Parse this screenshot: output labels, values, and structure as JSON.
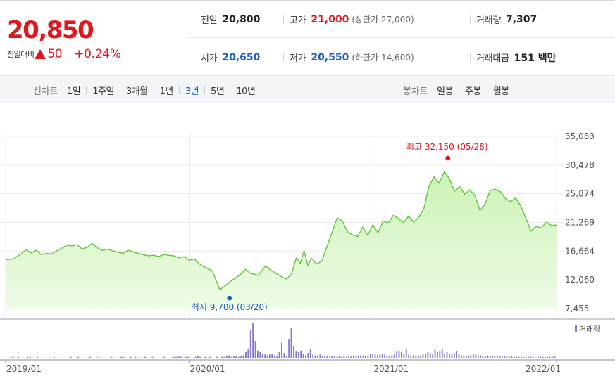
{
  "quote": {
    "price": "20,850",
    "change_label": "전일대비",
    "change_value": "50",
    "change_percent": "+0.24%",
    "up_color": "#e0181e",
    "down_color": "#1b5fc1"
  },
  "stats": {
    "prev_close": {
      "label": "전일",
      "value": "20,800"
    },
    "high": {
      "label": "고가",
      "value": "21,000",
      "limit_label": "(상한가 27,000)"
    },
    "volume": {
      "label": "거래량",
      "value": "7,307"
    },
    "open": {
      "label": "시가",
      "value": "20,650"
    },
    "low": {
      "label": "저가",
      "value": "20,550",
      "limit_label": "(하한가 14,600)"
    },
    "trade_value": {
      "label": "거래대금",
      "value": "151 백만"
    }
  },
  "period_bar": {
    "line_chart_label": "선차트",
    "line_tabs": [
      "1일",
      "1주일",
      "3개월",
      "1년",
      "3년",
      "5년",
      "10년"
    ],
    "active_line_tab": "3년",
    "candle_chart_label": "봉차트",
    "candle_tabs": [
      "일봉",
      "주봉",
      "월봉"
    ]
  },
  "chart_data": {
    "type": "area",
    "x_tick_labels": [
      "2019/01",
      "2020/01",
      "2021/01",
      "2022/01"
    ],
    "y_tick_labels": [
      "35,083",
      "30,478",
      "25,874",
      "21,269",
      "16,664",
      "12,060",
      "7,455"
    ],
    "ylim": [
      7455,
      35083
    ],
    "x_range": [
      "2019/01",
      "2022/01"
    ],
    "grid": true,
    "line_color": "#5fc53a",
    "fill_color": "#c8f2b0",
    "high_marker": {
      "label": "최고 32,150 (05/28)",
      "date": "2021/05",
      "value": 32150,
      "color": "#e0181e"
    },
    "low_marker": {
      "label": "최저 9,700 (03/20)",
      "date": "2020/03",
      "value": 9700,
      "color": "#1b5fc1"
    },
    "price_series": [
      [
        "2019/01",
        15300
      ],
      [
        "2019/01",
        15400
      ],
      [
        "2019/02",
        16200
      ],
      [
        "2019/02",
        16900
      ],
      [
        "2019/02",
        16400
      ],
      [
        "2019/03",
        16800
      ],
      [
        "2019/03",
        16100
      ],
      [
        "2019/03",
        16300
      ],
      [
        "2019/04",
        16200
      ],
      [
        "2019/04",
        16900
      ],
      [
        "2019/05",
        17600
      ],
      [
        "2019/05",
        17500
      ],
      [
        "2019/05",
        17700
      ],
      [
        "2019/06",
        17000
      ],
      [
        "2019/06",
        17300
      ],
      [
        "2019/06",
        17900
      ],
      [
        "2019/07",
        17200
      ],
      [
        "2019/07",
        16800
      ],
      [
        "2019/07",
        17000
      ],
      [
        "2019/08",
        16700
      ],
      [
        "2019/08",
        16500
      ],
      [
        "2019/08",
        16300
      ],
      [
        "2019/09",
        16800
      ],
      [
        "2019/09",
        16400
      ],
      [
        "2019/10",
        16100
      ],
      [
        "2019/10",
        15900
      ],
      [
        "2019/10",
        16000
      ],
      [
        "2019/11",
        15800
      ],
      [
        "2019/11",
        16100
      ],
      [
        "2019/11",
        16000
      ],
      [
        "2019/12",
        15900
      ],
      [
        "2019/12",
        15600
      ],
      [
        "2019/12",
        15800
      ],
      [
        "2020/01",
        15200
      ],
      [
        "2020/01",
        15400
      ],
      [
        "2020/01",
        14600
      ],
      [
        "2020/02",
        14100
      ],
      [
        "2020/02",
        13500
      ],
      [
        "2020/03",
        10500
      ],
      [
        "2020/03",
        11100
      ],
      [
        "2020/03",
        11800
      ],
      [
        "2020/04",
        12300
      ],
      [
        "2020/04",
        12900
      ],
      [
        "2020/04",
        13700
      ],
      [
        "2020/05",
        13100
      ],
      [
        "2020/05",
        12800
      ],
      [
        "2020/06",
        14300
      ],
      [
        "2020/06",
        13600
      ],
      [
        "2020/06",
        13100
      ],
      [
        "2020/07",
        12600
      ],
      [
        "2020/07",
        12200
      ],
      [
        "2020/07",
        12900
      ],
      [
        "2020/08",
        15600
      ],
      [
        "2020/08",
        14700
      ],
      [
        "2020/08",
        16700
      ],
      [
        "2020/08",
        14400
      ],
      [
        "2020/09",
        15500
      ],
      [
        "2020/09",
        14600
      ],
      [
        "2020/09",
        15100
      ],
      [
        "2020/10",
        17400
      ],
      [
        "2020/10",
        19700
      ],
      [
        "2020/10",
        22000
      ],
      [
        "2020/11",
        21500
      ],
      [
        "2020/11",
        19800
      ],
      [
        "2020/11",
        19300
      ],
      [
        "2020/12",
        19000
      ],
      [
        "2020/12",
        20500
      ],
      [
        "2020/12",
        19200
      ],
      [
        "2021/01",
        20900
      ],
      [
        "2021/01",
        19600
      ],
      [
        "2021/01",
        21500
      ],
      [
        "2021/02",
        21200
      ],
      [
        "2021/02",
        22400
      ],
      [
        "2021/02",
        21900
      ],
      [
        "2021/03",
        21200
      ],
      [
        "2021/03",
        22300
      ],
      [
        "2021/03",
        21300
      ],
      [
        "2021/04",
        22100
      ],
      [
        "2021/04",
        23500
      ],
      [
        "2021/04",
        27100
      ],
      [
        "2021/05",
        28600
      ],
      [
        "2021/05",
        27600
      ],
      [
        "2021/05",
        29400
      ],
      [
        "2021/06",
        28300
      ],
      [
        "2021/06",
        26300
      ],
      [
        "2021/06",
        27000
      ],
      [
        "2021/07",
        25800
      ],
      [
        "2021/07",
        26500
      ],
      [
        "2021/07",
        25600
      ],
      [
        "2021/08",
        23200
      ],
      [
        "2021/08",
        24200
      ],
      [
        "2021/08",
        26400
      ],
      [
        "2021/09",
        26600
      ],
      [
        "2021/09",
        26200
      ],
      [
        "2021/09",
        25100
      ],
      [
        "2021/10",
        24600
      ],
      [
        "2021/10",
        25200
      ],
      [
        "2021/10",
        23900
      ],
      [
        "2021/11",
        21900
      ],
      [
        "2021/11",
        19900
      ],
      [
        "2021/11",
        20600
      ],
      [
        "2021/12",
        20400
      ],
      [
        "2021/12",
        21300
      ],
      [
        "2021/12",
        20800
      ],
      [
        "2022/01",
        20850
      ]
    ],
    "volume_series": {
      "name": "거래량",
      "color": "#8b77d1",
      "values": [
        1,
        1,
        2,
        2,
        1,
        2,
        1,
        1,
        1,
        2,
        2,
        1,
        1,
        2,
        1,
        1,
        1,
        1,
        1,
        1,
        2,
        1,
        1,
        1,
        1,
        1,
        1,
        2,
        1,
        1,
        2,
        1,
        1,
        1,
        1,
        2,
        1,
        1,
        2,
        1,
        1,
        1,
        1,
        1,
        2,
        1,
        1,
        1,
        2,
        2,
        1,
        1,
        2,
        1,
        2,
        1,
        1,
        1,
        2,
        1,
        1,
        2,
        1,
        1,
        1,
        1,
        2,
        1,
        1,
        1,
        2,
        2,
        3,
        2,
        1,
        2,
        2,
        1,
        1,
        2,
        3,
        2,
        1,
        2,
        1,
        2,
        1,
        1,
        2,
        1,
        2,
        2,
        3,
        4,
        2,
        3,
        3,
        2,
        3,
        4,
        8,
        12,
        36,
        45,
        22,
        10,
        8,
        6,
        5,
        4,
        5,
        6,
        4,
        3,
        8,
        20,
        7,
        3,
        24,
        38,
        16,
        9,
        8,
        10,
        6,
        4,
        7,
        12,
        5,
        4,
        3,
        5,
        3,
        4,
        3,
        2,
        3,
        3,
        2,
        3,
        2,
        3,
        2,
        3,
        3,
        4,
        3,
        4,
        4,
        3,
        4,
        3,
        6,
        5,
        5,
        4,
        5,
        6,
        5,
        4,
        3,
        4,
        5,
        9,
        10,
        8,
        6,
        12,
        5,
        4,
        4,
        3,
        4,
        4,
        5,
        6,
        8,
        7,
        5,
        11,
        8,
        9,
        12,
        6,
        8,
        6,
        5,
        7,
        9,
        6,
        4,
        4,
        3,
        4,
        4,
        5,
        5,
        4,
        4,
        3,
        3,
        4,
        3,
        3,
        3,
        4,
        3,
        3,
        3,
        3,
        3,
        3,
        2,
        2,
        2,
        2,
        2,
        2,
        2,
        2,
        2,
        1,
        3,
        2,
        2,
        2,
        2,
        2,
        2,
        3
      ]
    }
  }
}
